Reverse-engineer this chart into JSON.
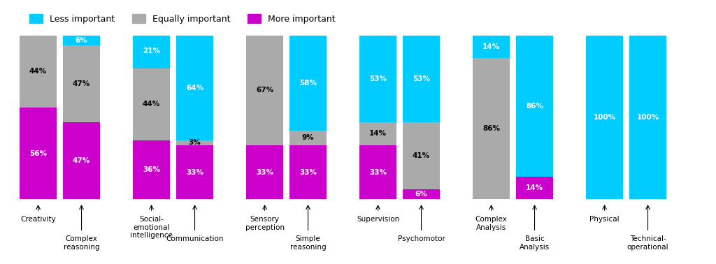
{
  "bars": [
    {
      "label": "Creativity",
      "label_level": "top",
      "more": 56,
      "equal": 44,
      "less": 0
    },
    {
      "label": "Complex\nreasoning",
      "label_level": "bottom",
      "more": 47,
      "equal": 47,
      "less": 6
    },
    {
      "label": "Social-\nemotional\nintelligence",
      "label_level": "top",
      "more": 36,
      "equal": 44,
      "less": 21
    },
    {
      "label": "Communication",
      "label_level": "bottom",
      "more": 33,
      "equal": 3,
      "less": 64
    },
    {
      "label": "Sensory\nperception",
      "label_level": "top",
      "more": 33,
      "equal": 67,
      "less": 0
    },
    {
      "label": "Simple\nreasoning",
      "label_level": "bottom",
      "more": 33,
      "equal": 9,
      "less": 58
    },
    {
      "label": "Supervision",
      "label_level": "top",
      "more": 33,
      "equal": 14,
      "less": 53
    },
    {
      "label": "Psychomotor",
      "label_level": "bottom",
      "more": 6,
      "equal": 41,
      "less": 53
    },
    {
      "label": "Complex\nAnalysis",
      "label_level": "top",
      "more": 0,
      "equal": 86,
      "less": 14
    },
    {
      "label": "Basic\nAnalysis",
      "label_level": "bottom",
      "more": 14,
      "equal": 0,
      "less": 86
    },
    {
      "label": "Physical",
      "label_level": "top",
      "more": 0,
      "equal": 0,
      "less": 100
    },
    {
      "label": "Technical-\noperational",
      "label_level": "bottom",
      "more": 0,
      "equal": 0,
      "less": 100
    }
  ],
  "color_more": "#CC00CC",
  "color_equal": "#AAAAAA",
  "color_less": "#00CCFF",
  "color_more_label": "More important",
  "color_equal_label": "Equally important",
  "color_less_label": "Less important",
  "bg_color": "#FFFFFF",
  "bar_width": 0.55,
  "figsize": [
    10.24,
    3.78
  ],
  "dpi": 100
}
